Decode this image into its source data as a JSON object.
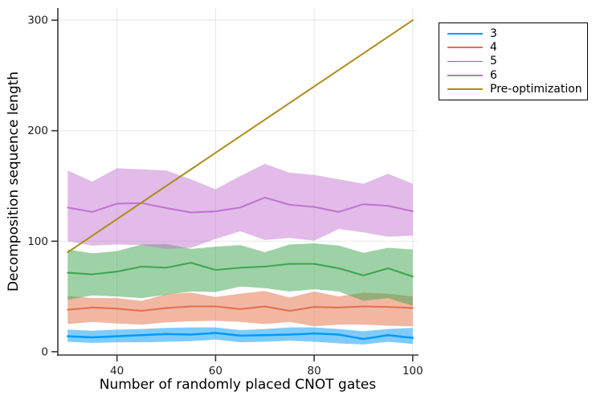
{
  "figure": {
    "background_color": "#ffffff",
    "grid_color": "#e8e8e8",
    "spine_color": "#36383a",
    "tick_label_color": "#1c1c1c"
  },
  "chart_data": {
    "type": "line",
    "title": "",
    "xlabel": "Number of randomly placed CNOT gates",
    "ylabel": "Decomposition sequence length",
    "xlim": [
      28,
      101
    ],
    "ylim": [
      -3,
      311
    ],
    "xticks": [
      40,
      60,
      80,
      100
    ],
    "yticks": [
      0,
      100,
      200,
      300
    ],
    "grid": true,
    "legend_position": "outside-top-right",
    "x": [
      30,
      35,
      40,
      45,
      50,
      55,
      60,
      65,
      70,
      75,
      80,
      85,
      90,
      95,
      100
    ],
    "series": [
      {
        "name": "3",
        "color": "#009AFA",
        "line_width": 2.5,
        "ribbon_alpha": 0.5,
        "mean": [
          14,
          13,
          14,
          15,
          16,
          15.5,
          17,
          14.5,
          15,
          15.5,
          16.5,
          15.5,
          11.5,
          15,
          12.5
        ],
        "upper": [
          20,
          19,
          20,
          20.5,
          21.5,
          22,
          22,
          19.5,
          20.5,
          22,
          22,
          20.5,
          18.5,
          20.5,
          21.5
        ],
        "lower": [
          9,
          8,
          8.5,
          8.5,
          9,
          9.5,
          11,
          8.5,
          9,
          10,
          9,
          7.5,
          6.5,
          9,
          7
        ]
      },
      {
        "name": "4",
        "color": "#E36F47",
        "line_width": 2,
        "ribbon_alpha": 0.5,
        "mean": [
          38,
          40,
          39,
          37,
          39.5,
          41,
          41,
          38.5,
          41,
          37,
          40.5,
          40,
          41,
          40.5,
          39.5
        ],
        "upper": [
          50.5,
          48.5,
          48.5,
          46,
          52,
          53.5,
          49.5,
          52.5,
          55,
          49,
          54.5,
          50,
          53.5,
          52.5,
          50
        ],
        "lower": [
          25,
          27,
          25.5,
          24.5,
          26.5,
          27.5,
          28,
          27,
          25,
          27,
          23,
          24.5,
          24.5,
          23.5,
          23
        ]
      },
      {
        "name": "5",
        "color": "#3DA44E",
        "line_width": 2,
        "ribbon_alpha": 0.5,
        "mean": [
          71.5,
          70,
          72.5,
          77,
          76,
          80.5,
          74,
          76,
          77,
          79.5,
          79.5,
          75.5,
          69,
          75.5,
          68
        ],
        "upper": [
          92.5,
          89,
          91,
          97,
          97.5,
          93,
          95,
          96.5,
          90,
          97,
          98,
          96,
          89.5,
          94,
          92.5
        ],
        "lower": [
          47,
          51,
          50,
          48.5,
          51.5,
          54.5,
          54,
          59,
          57.5,
          54.5,
          56.5,
          54.5,
          46,
          48.5,
          41.5
        ]
      },
      {
        "name": "6",
        "color": "#C271D2",
        "line_width": 2,
        "ribbon_alpha": 0.48,
        "mean": [
          130.5,
          126.5,
          134,
          134.5,
          130,
          126,
          127,
          130.5,
          139.5,
          133,
          131,
          126.5,
          133.5,
          132,
          127
        ],
        "upper": [
          164,
          154,
          166,
          165,
          164,
          156,
          147,
          159,
          170,
          162,
          160,
          156,
          152,
          161,
          152
        ],
        "lower": [
          100,
          96,
          97,
          96.5,
          93,
          94,
          102,
          109,
          101,
          103,
          100.5,
          111,
          108,
          104,
          105
        ]
      },
      {
        "name": "Pre-optimization",
        "color": "#AC8D18",
        "line_width": 2,
        "values": [
          90,
          105,
          120,
          135,
          150,
          165,
          180,
          195,
          210,
          225,
          240,
          255,
          270,
          285,
          300
        ]
      }
    ]
  }
}
